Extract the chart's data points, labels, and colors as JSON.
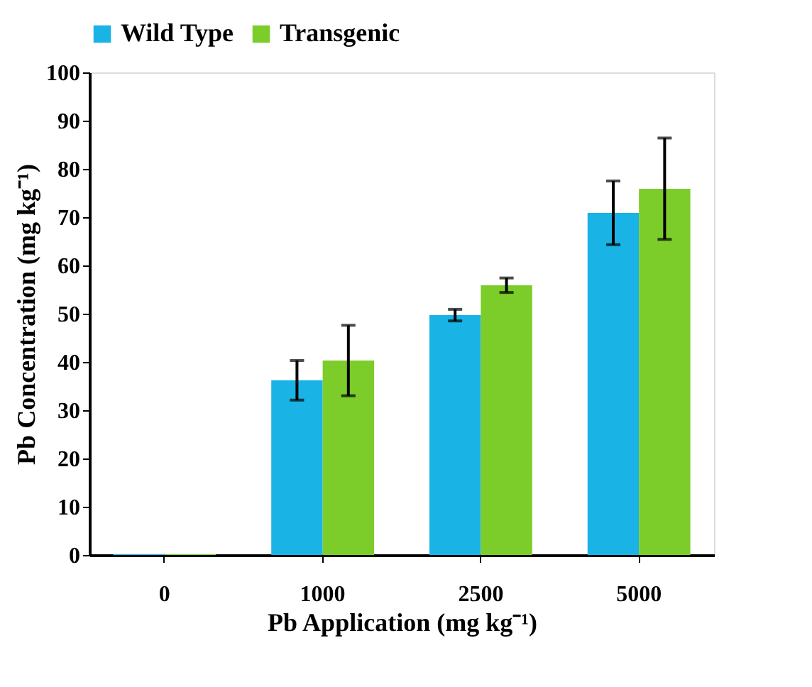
{
  "chart_data": {
    "type": "bar",
    "xlabel": "Pb Application (mg kg⁻¹)",
    "ylabel": "Pb Concentration (mg kg⁻¹)",
    "categories": [
      "0",
      "1000",
      "2500",
      "5000"
    ],
    "series": [
      {
        "name": "Wild Type",
        "color": "#1ab3e6",
        "values": [
          0.2,
          36.2,
          49.7,
          70.9
        ],
        "errors": [
          null,
          4.1,
          1.2,
          6.6
        ]
      },
      {
        "name": "Transgenic",
        "color": "#7ccc2a",
        "values": [
          0.2,
          40.3,
          55.9,
          75.9
        ],
        "errors": [
          null,
          7.3,
          1.5,
          10.5
        ]
      }
    ],
    "ylim": [
      0,
      100
    ],
    "yticks": [
      0,
      10,
      20,
      30,
      40,
      50,
      60,
      70,
      80,
      90,
      100
    ],
    "grid": false,
    "legend": "top"
  }
}
